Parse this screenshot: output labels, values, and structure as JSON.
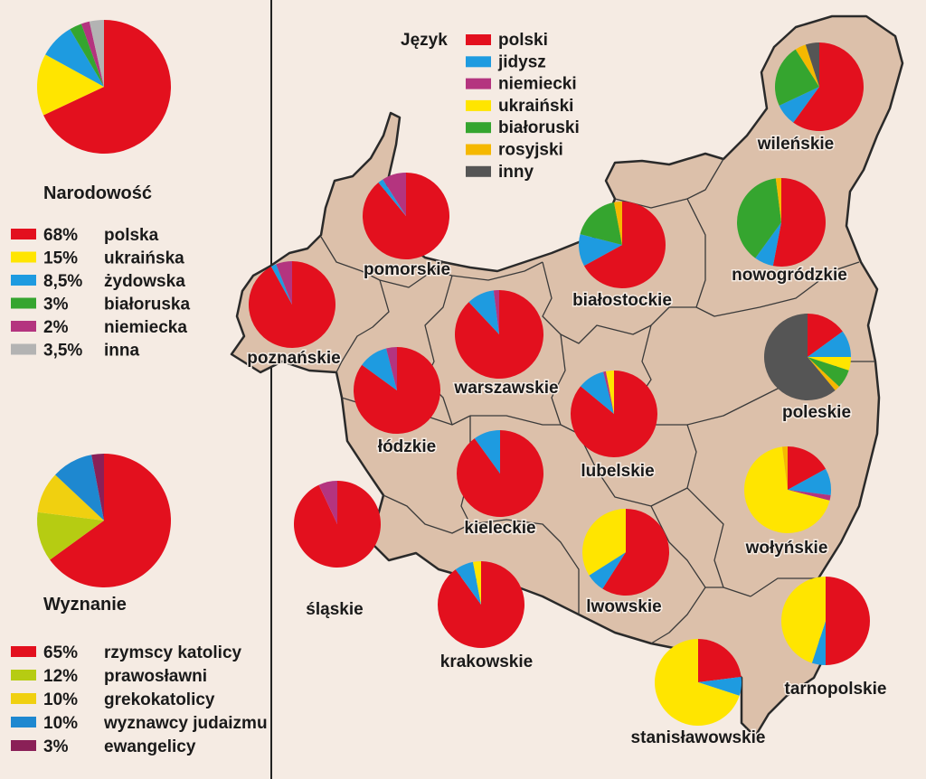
{
  "colors": {
    "background": "#f5ebe3",
    "land": "#dcc0aa",
    "border": "#2a2a2a",
    "text": "#1a1a1a",
    "divider": "#222222"
  },
  "nationality": {
    "title": "Narodowość",
    "items": [
      {
        "pct": "68%",
        "label": "polska",
        "value": 68,
        "color": "#e3101e"
      },
      {
        "pct": "15%",
        "label": "ukraińska",
        "value": 15,
        "color": "#ffe500"
      },
      {
        "pct": "8,5%",
        "label": "żydowska",
        "value": 8.5,
        "color": "#1e9be0"
      },
      {
        "pct": "3%",
        "label": "białoruska",
        "value": 3,
        "color": "#35a52f"
      },
      {
        "pct": "2%",
        "label": "niemiecka",
        "value": 2,
        "color": "#b4347f"
      },
      {
        "pct": "3,5%",
        "label": "inna",
        "value": 3.5,
        "color": "#b3b3b3"
      }
    ]
  },
  "religion": {
    "title": "Wyznanie",
    "items": [
      {
        "pct": "65%",
        "label": "rzymscy katolicy",
        "value": 65,
        "color": "#e3101e"
      },
      {
        "pct": "12%",
        "label": "prawosławni",
        "value": 12,
        "color": "#b6cc12"
      },
      {
        "pct": "10%",
        "label": "grekokatolicy",
        "value": 10,
        "color": "#f0d010"
      },
      {
        "pct": "10%",
        "label": "wyznawcy judaizmu",
        "value": 10,
        "color": "#1e88d0"
      },
      {
        "pct": "3%",
        "label": "ewangelicy",
        "value": 3,
        "color": "#8a2057"
      }
    ]
  },
  "language": {
    "title": "Język",
    "items": [
      {
        "key": "polski",
        "label": "polski",
        "color": "#e3101e"
      },
      {
        "key": "jidysz",
        "label": "jidysz",
        "color": "#1e9be0"
      },
      {
        "key": "niemiecki",
        "label": "niemiecki",
        "color": "#b4347f"
      },
      {
        "key": "ukrainski",
        "label": "ukraiński",
        "color": "#ffe500"
      },
      {
        "key": "bialoruski",
        "label": "białoruski",
        "color": "#35a52f"
      },
      {
        "key": "rosyjski",
        "label": "rosyjski",
        "color": "#f5b800"
      },
      {
        "key": "inny",
        "label": "inny",
        "color": "#555555"
      }
    ]
  },
  "regions": [
    {
      "name": "wileńskie",
      "shares": {
        "polski": 60,
        "jidysz": 8,
        "niemiecki": 0,
        "ukrainski": 0,
        "bialoruski": 23,
        "rosyjski": 4,
        "inny": 5
      }
    },
    {
      "name": "nowogródzkie",
      "shares": {
        "polski": 53,
        "jidysz": 7,
        "niemiecki": 0,
        "ukrainski": 0,
        "bialoruski": 38,
        "rosyjski": 2,
        "inny": 0
      }
    },
    {
      "name": "białostockie",
      "shares": {
        "polski": 67,
        "jidysz": 12,
        "niemiecki": 0,
        "ukrainski": 0,
        "bialoruski": 18,
        "rosyjski": 3,
        "inny": 0
      }
    },
    {
      "name": "pomorskie",
      "shares": {
        "polski": 89,
        "jidysz": 2,
        "niemiecki": 9,
        "ukrainski": 0,
        "bialoruski": 0,
        "rosyjski": 0,
        "inny": 0
      }
    },
    {
      "name": "poznańskie",
      "shares": {
        "polski": 92,
        "jidysz": 2,
        "niemiecki": 6,
        "ukrainski": 0,
        "bialoruski": 0,
        "rosyjski": 0,
        "inny": 0
      }
    },
    {
      "name": "warszawskie",
      "shares": {
        "polski": 88,
        "jidysz": 10,
        "niemiecki": 2,
        "ukrainski": 0,
        "bialoruski": 0,
        "rosyjski": 0,
        "inny": 0
      }
    },
    {
      "name": "łódzkie",
      "shares": {
        "polski": 85,
        "jidysz": 11,
        "niemiecki": 4,
        "ukrainski": 0,
        "bialoruski": 0,
        "rosyjski": 0,
        "inny": 0
      }
    },
    {
      "name": "kieleckie",
      "shares": {
        "polski": 90,
        "jidysz": 10,
        "niemiecki": 0,
        "ukrainski": 0,
        "bialoruski": 0,
        "rosyjski": 0,
        "inny": 0
      }
    },
    {
      "name": "lubelskie",
      "shares": {
        "polski": 86,
        "jidysz": 10,
        "niemiecki": 1,
        "ukrainski": 3,
        "bialoruski": 0,
        "rosyjski": 0,
        "inny": 0
      }
    },
    {
      "name": "poleskie",
      "shares": {
        "polski": 15,
        "jidysz": 10,
        "niemiecki": 0,
        "ukrainski": 5,
        "bialoruski": 7,
        "rosyjski": 2,
        "inny": 61
      }
    },
    {
      "name": "wołyńskie",
      "shares": {
        "polski": 17,
        "jidysz": 10,
        "niemiecki": 2,
        "ukrainski": 69,
        "bialoruski": 0,
        "rosyjski": 2,
        "inny": 0
      }
    },
    {
      "name": "śląskie",
      "shares": {
        "polski": 93,
        "jidysz": 0,
        "niemiecki": 7,
        "ukrainski": 0,
        "bialoruski": 0,
        "rosyjski": 0,
        "inny": 0
      }
    },
    {
      "name": "krakowskie",
      "shares": {
        "polski": 90,
        "jidysz": 7,
        "niemiecki": 0,
        "ukrainski": 3,
        "bialoruski": 0,
        "rosyjski": 0,
        "inny": 0
      }
    },
    {
      "name": "lwowskie",
      "shares": {
        "polski": 59,
        "jidysz": 7,
        "niemiecki": 0,
        "ukrainski": 34,
        "bialoruski": 0,
        "rosyjski": 0,
        "inny": 0
      }
    },
    {
      "name": "stanisławowskie",
      "shares": {
        "polski": 23,
        "jidysz": 7,
        "niemiecki": 0,
        "ukrainski": 70,
        "bialoruski": 0,
        "rosyjski": 0,
        "inny": 0
      }
    },
    {
      "name": "tarnopolskie",
      "shares": {
        "polski": 50,
        "jidysz": 5,
        "niemiecki": 0,
        "ukrainski": 45,
        "bialoruski": 0,
        "rosyjski": 0,
        "inny": 0
      }
    }
  ]
}
